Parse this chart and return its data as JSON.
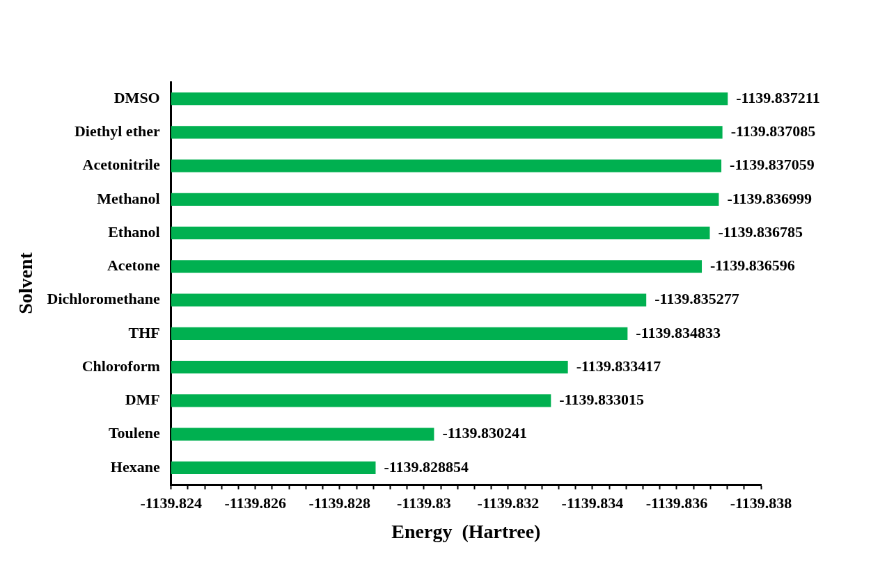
{
  "chart_data": {
    "type": "bar",
    "orientation": "horizontal",
    "xlabel": "Energy  (Hartree)",
    "ylabel": "Solvent",
    "categories": [
      "DMSO",
      "Diethyl ether",
      "Acetonitrile",
      "Methanol",
      "Ethanol",
      "Acetone",
      "Dichloromethane",
      "THF",
      "Chloroform",
      "DMF",
      "Toulene",
      "Hexane"
    ],
    "values": [
      -1139.837211,
      -1139.837085,
      -1139.837059,
      -1139.836999,
      -1139.836785,
      -1139.836596,
      -1139.835277,
      -1139.834833,
      -1139.833417,
      -1139.833015,
      -1139.830241,
      -1139.828854
    ],
    "color": "#00b050",
    "data_labels": true,
    "grid": false,
    "legend": false,
    "xlim": [
      -1139.824,
      -1139.838
    ],
    "xticks": [
      -1139.824,
      {
        "value": -1139.8244,
        "label": null
      },
      {
        "value": -1139.8248,
        "label": null
      },
      {
        "value": -1139.8252,
        "label": null
      },
      {
        "value": -1139.8256,
        "label": null
      },
      -1139.826,
      {
        "value": -1139.8264,
        "label": null
      },
      {
        "value": -1139.8268,
        "label": null
      },
      {
        "value": -1139.8272,
        "label": null
      },
      {
        "value": -1139.8276,
        "label": null
      },
      -1139.828,
      {
        "value": -1139.8284,
        "label": null
      },
      {
        "value": -1139.8288,
        "label": null
      },
      {
        "value": -1139.8292,
        "label": null
      },
      {
        "value": -1139.8296,
        "label": null
      },
      -1139.83,
      {
        "value": -1139.8304,
        "label": null
      },
      {
        "value": -1139.8308,
        "label": null
      },
      {
        "value": -1139.8312,
        "label": null
      },
      {
        "value": -1139.8316,
        "label": null
      },
      -1139.832,
      {
        "value": -1139.8324,
        "label": null
      },
      {
        "value": -1139.8328,
        "label": null
      },
      {
        "value": -1139.8332,
        "label": null
      },
      {
        "value": -1139.8336,
        "label": null
      },
      -1139.834,
      {
        "value": -1139.8344,
        "label": null
      },
      {
        "value": -1139.8348,
        "label": null
      },
      {
        "value": -1139.8352,
        "label": null
      },
      {
        "value": -1139.8356,
        "label": null
      },
      -1139.836,
      {
        "value": -1139.8364,
        "label": null
      },
      {
        "value": -1139.8368,
        "label": null
      },
      {
        "value": -1139.8372,
        "label": null
      },
      {
        "value": -1139.8376,
        "label": null
      },
      -1139.838
    ]
  }
}
